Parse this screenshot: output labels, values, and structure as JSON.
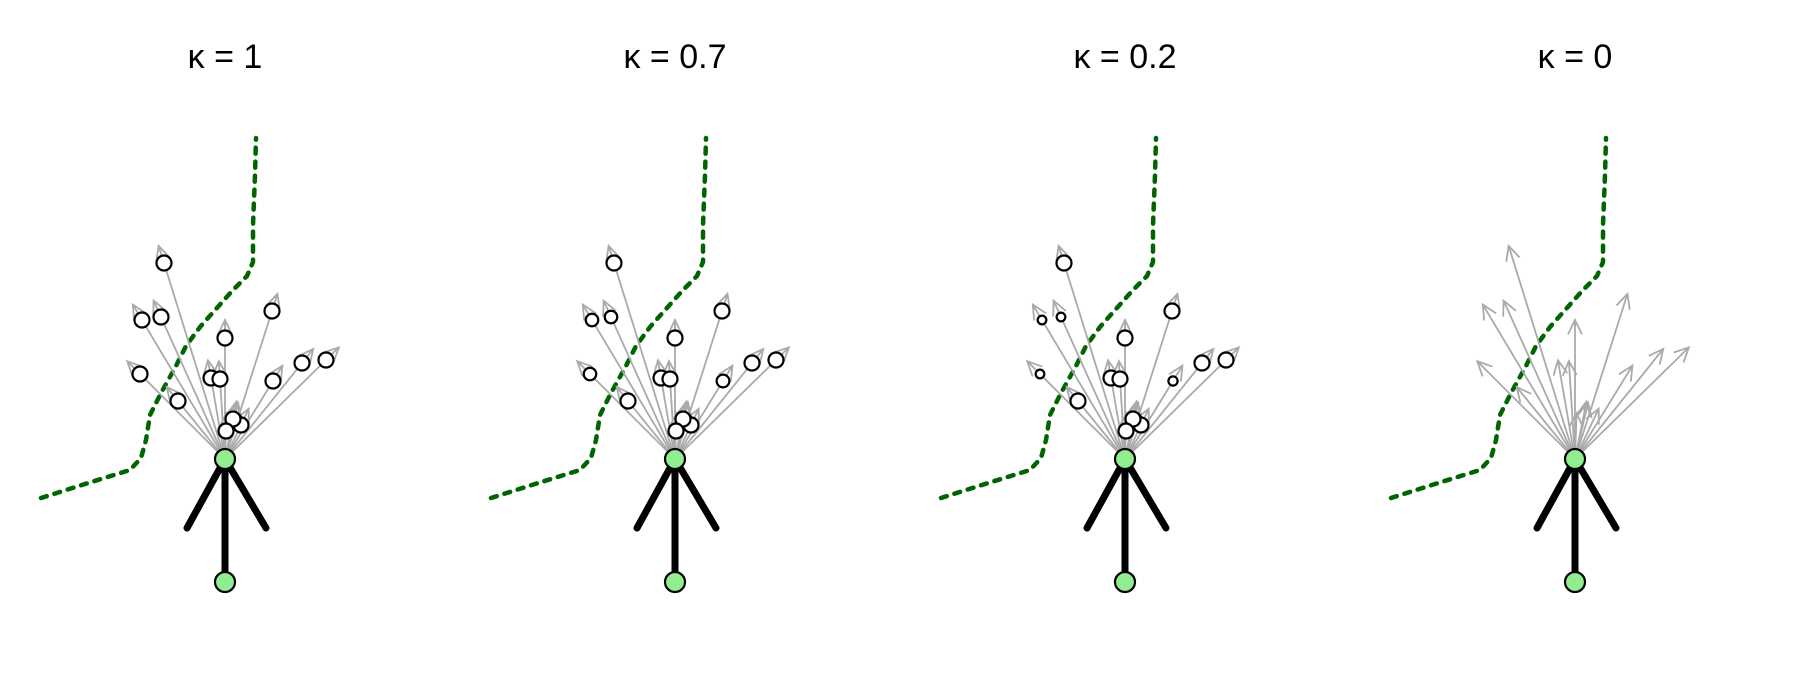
{
  "colors": {
    "background": "#ffffff",
    "boundary": "#006400",
    "edges": "#aaaaaa",
    "candidate_fill": "#ffffff",
    "candidate_stroke": "#000000",
    "current_node_fill": "#90ee90",
    "body": "#000000"
  },
  "panels": [
    {
      "title": "κ = 1",
      "kappa": 1,
      "arrows_only": false
    },
    {
      "title": "κ = 0.7",
      "kappa": 0.7,
      "arrows_only": false
    },
    {
      "title": "κ = 0.2",
      "kappa": 0.2,
      "arrows_only": false
    },
    {
      "title": "κ = 0",
      "kappa": 0,
      "arrows_only": true
    }
  ]
}
